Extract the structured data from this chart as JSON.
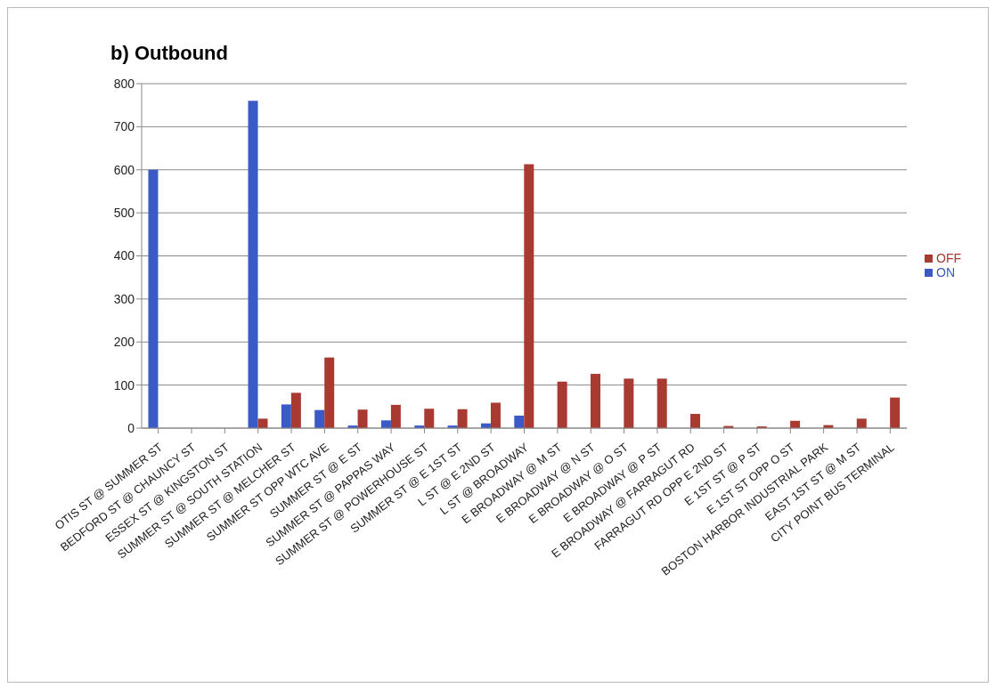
{
  "chart_data": {
    "type": "bar",
    "title": "b) Outbound",
    "categories": [
      "OTIS ST @ SUMMER ST",
      "BEDFORD ST @ CHAUNCY ST",
      "ESSEX ST @ KINGSTON ST",
      "SUMMER ST @ SOUTH STATION",
      "SUMMER ST @ MELCHER ST",
      "SUMMER ST OPP WTC AVE",
      "SUMMER ST @ E ST",
      "SUMMER ST @ PAPPAS WAY",
      "SUMMER ST @ POWERHOUSE ST",
      "SUMMER ST @ E 1ST ST",
      "L ST @ E 2ND ST",
      "L ST @ BROADWAY",
      "E BROADWAY @ M ST",
      "E BROADWAY @ N ST",
      "E BROADWAY @ O ST",
      "E BROADWAY @ P ST",
      "E BROADWAY @ FARRAGUT RD",
      "FARRAGUT RD OPP E 2ND ST",
      "E 1ST ST @ P ST",
      "E 1ST ST OPP O ST",
      "BOSTON HARBOR INDUSTRIAL PARK",
      "EAST 1ST ST @ M ST",
      "CITY POINT BUS TERMINAL"
    ],
    "series": [
      {
        "name": "ON",
        "color": "#3a5bc7",
        "values": [
          600,
          0,
          0,
          760,
          55,
          42,
          6,
          18,
          6,
          6,
          11,
          29,
          0,
          0,
          0,
          0,
          0,
          0,
          0,
          0,
          0,
          0,
          0
        ]
      },
      {
        "name": "OFF",
        "color": "#a83a32",
        "values": [
          0,
          0,
          0,
          22,
          82,
          164,
          43,
          54,
          45,
          44,
          59,
          613,
          108,
          126,
          115,
          115,
          33,
          5,
          4,
          17,
          7,
          22,
          71
        ]
      }
    ],
    "ylim": [
      0,
      800
    ],
    "yticks": [
      0,
      100,
      200,
      300,
      400,
      500,
      600,
      700,
      800
    ],
    "grid": "y",
    "legend": "right"
  }
}
